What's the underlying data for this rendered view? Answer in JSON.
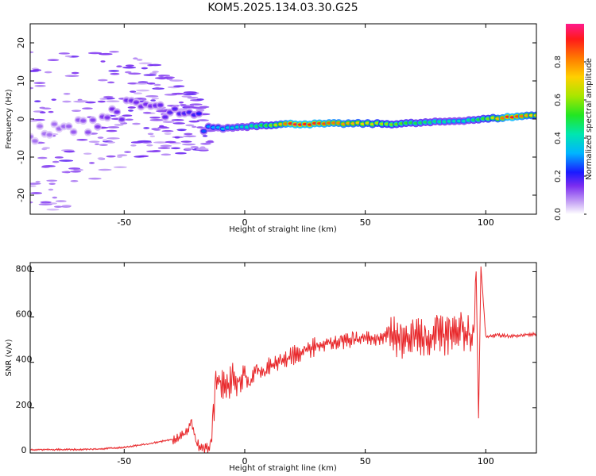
{
  "title": "KOM5.2025.134.03.30.G25",
  "chart_data": [
    {
      "type": "heatmap",
      "xlabel": "Height of straight line (km)",
      "ylabel": "Frequency (Hz)",
      "xlim": [
        -89,
        121
      ],
      "ylim": [
        -25,
        25
      ],
      "xticks": [
        -50,
        0,
        50,
        100
      ],
      "yticks": [
        -20,
        -10,
        0,
        10,
        20
      ],
      "colorbar": {
        "label": "Normalized spectral amplitude",
        "range": [
          0.0,
          1.0
        ],
        "ticks": [
          "0.0",
          "0.2",
          "0.4",
          "0.6",
          "0.8"
        ]
      },
      "ridge": [
        {
          "x": -80,
          "f": -3.5,
          "amp": 0.1
        },
        {
          "x": -70,
          "f": -2.5,
          "amp": 0.12
        },
        {
          "x": -60,
          "f": 0.5,
          "amp": 0.14
        },
        {
          "x": -50,
          "f": 2.5,
          "amp": 0.16
        },
        {
          "x": -40,
          "f": 3.5,
          "amp": 0.15
        },
        {
          "x": -30,
          "f": 0.5,
          "amp": 0.18
        },
        {
          "x": -20,
          "f": 0.0,
          "amp": 0.2
        },
        {
          "x": -15,
          "f": -2.0,
          "amp": 0.3
        },
        {
          "x": -10,
          "f": -2.5,
          "amp": 0.35
        },
        {
          "x": 0,
          "f": -2.0,
          "amp": 0.4
        },
        {
          "x": 10,
          "f": -1.5,
          "amp": 0.55
        },
        {
          "x": 20,
          "f": -1.3,
          "amp": 0.95
        },
        {
          "x": 30,
          "f": -1.3,
          "amp": 0.9
        },
        {
          "x": 40,
          "f": -1.2,
          "amp": 0.8
        },
        {
          "x": 50,
          "f": -1.2,
          "amp": 0.7
        },
        {
          "x": 60,
          "f": -1.3,
          "amp": 0.6
        },
        {
          "x": 70,
          "f": -1.1,
          "amp": 0.5
        },
        {
          "x": 80,
          "f": -0.8,
          "amp": 0.45
        },
        {
          "x": 90,
          "f": -0.4,
          "amp": 0.4
        },
        {
          "x": 100,
          "f": 0.0,
          "amp": 0.55
        },
        {
          "x": 110,
          "f": 0.5,
          "amp": 0.95
        },
        {
          "x": 120,
          "f": 1.0,
          "amp": 0.7
        }
      ]
    },
    {
      "type": "line",
      "xlabel": "Height of straight line (km)",
      "ylabel": "SNR (v/v)",
      "xlim": [
        -89,
        121
      ],
      "ylim": [
        0,
        840
      ],
      "xticks": [
        -50,
        0,
        50,
        100
      ],
      "yticks": [
        0,
        200,
        400,
        600,
        800
      ],
      "line_color": "#e8282b",
      "x": [
        -89,
        -80,
        -70,
        -60,
        -50,
        -40,
        -30,
        -25,
        -22,
        -20,
        -17,
        -14,
        -13,
        -12,
        -10,
        -8,
        -5,
        -2,
        0,
        2,
        5,
        8,
        10,
        15,
        20,
        25,
        30,
        35,
        40,
        45,
        50,
        55,
        60,
        65,
        70,
        75,
        80,
        85,
        90,
        95,
        96,
        97,
        98,
        100,
        105,
        110,
        115,
        121
      ],
      "y": [
        15,
        15,
        15,
        18,
        25,
        40,
        60,
        80,
        140,
        40,
        20,
        30,
        150,
        300,
        320,
        280,
        330,
        310,
        350,
        300,
        380,
        340,
        380,
        400,
        430,
        450,
        470,
        480,
        490,
        500,
        510,
        500,
        530,
        490,
        520,
        500,
        530,
        510,
        540,
        520,
        800,
        150,
        820,
        510,
        520,
        515,
        520,
        525
      ]
    }
  ]
}
